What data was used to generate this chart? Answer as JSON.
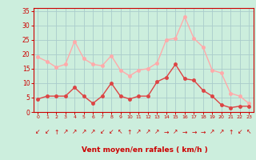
{
  "hours": [
    0,
    1,
    2,
    3,
    4,
    5,
    6,
    7,
    8,
    9,
    10,
    11,
    12,
    13,
    14,
    15,
    16,
    17,
    18,
    19,
    20,
    21,
    22,
    23
  ],
  "wind_avg": [
    4.5,
    5.5,
    5.5,
    5.5,
    8.5,
    5.5,
    3.0,
    5.5,
    10.0,
    5.5,
    4.5,
    5.5,
    5.5,
    10.5,
    12.0,
    16.5,
    11.5,
    11.0,
    7.5,
    5.5,
    2.5,
    1.5,
    2.0,
    2.0
  ],
  "wind_gust": [
    19.0,
    17.5,
    15.5,
    16.5,
    24.5,
    18.5,
    16.5,
    16.0,
    19.5,
    14.5,
    12.5,
    14.5,
    15.0,
    17.0,
    25.0,
    25.5,
    33.0,
    25.5,
    22.5,
    14.5,
    13.5,
    6.5,
    5.5,
    3.0
  ],
  "wind_dir_symbols": [
    "↙",
    "↙",
    "↑",
    "↗",
    "↗",
    "↗",
    "↗",
    "↙",
    "↙",
    "↖",
    "↑",
    "↗",
    "↗",
    "↗",
    "→",
    "↗",
    "→",
    "→",
    "→",
    "↗",
    "↗",
    "↑",
    "↙",
    "↖"
  ],
  "avg_color": "#dd4444",
  "gust_color": "#ffaaaa",
  "bg_color": "#cceedd",
  "grid_color": "#aacccc",
  "tick_color": "#cc0000",
  "label_color": "#cc0000",
  "spine_color": "#cc0000",
  "ylabel_ticks": [
    0,
    5,
    10,
    15,
    20,
    25,
    30,
    35
  ],
  "ylim": [
    0,
    36
  ],
  "xlim": [
    -0.5,
    23.5
  ],
  "xlabel": "Vent moyen/en rafales ( km/h )",
  "marker_size": 2.5,
  "line_width": 1.0
}
